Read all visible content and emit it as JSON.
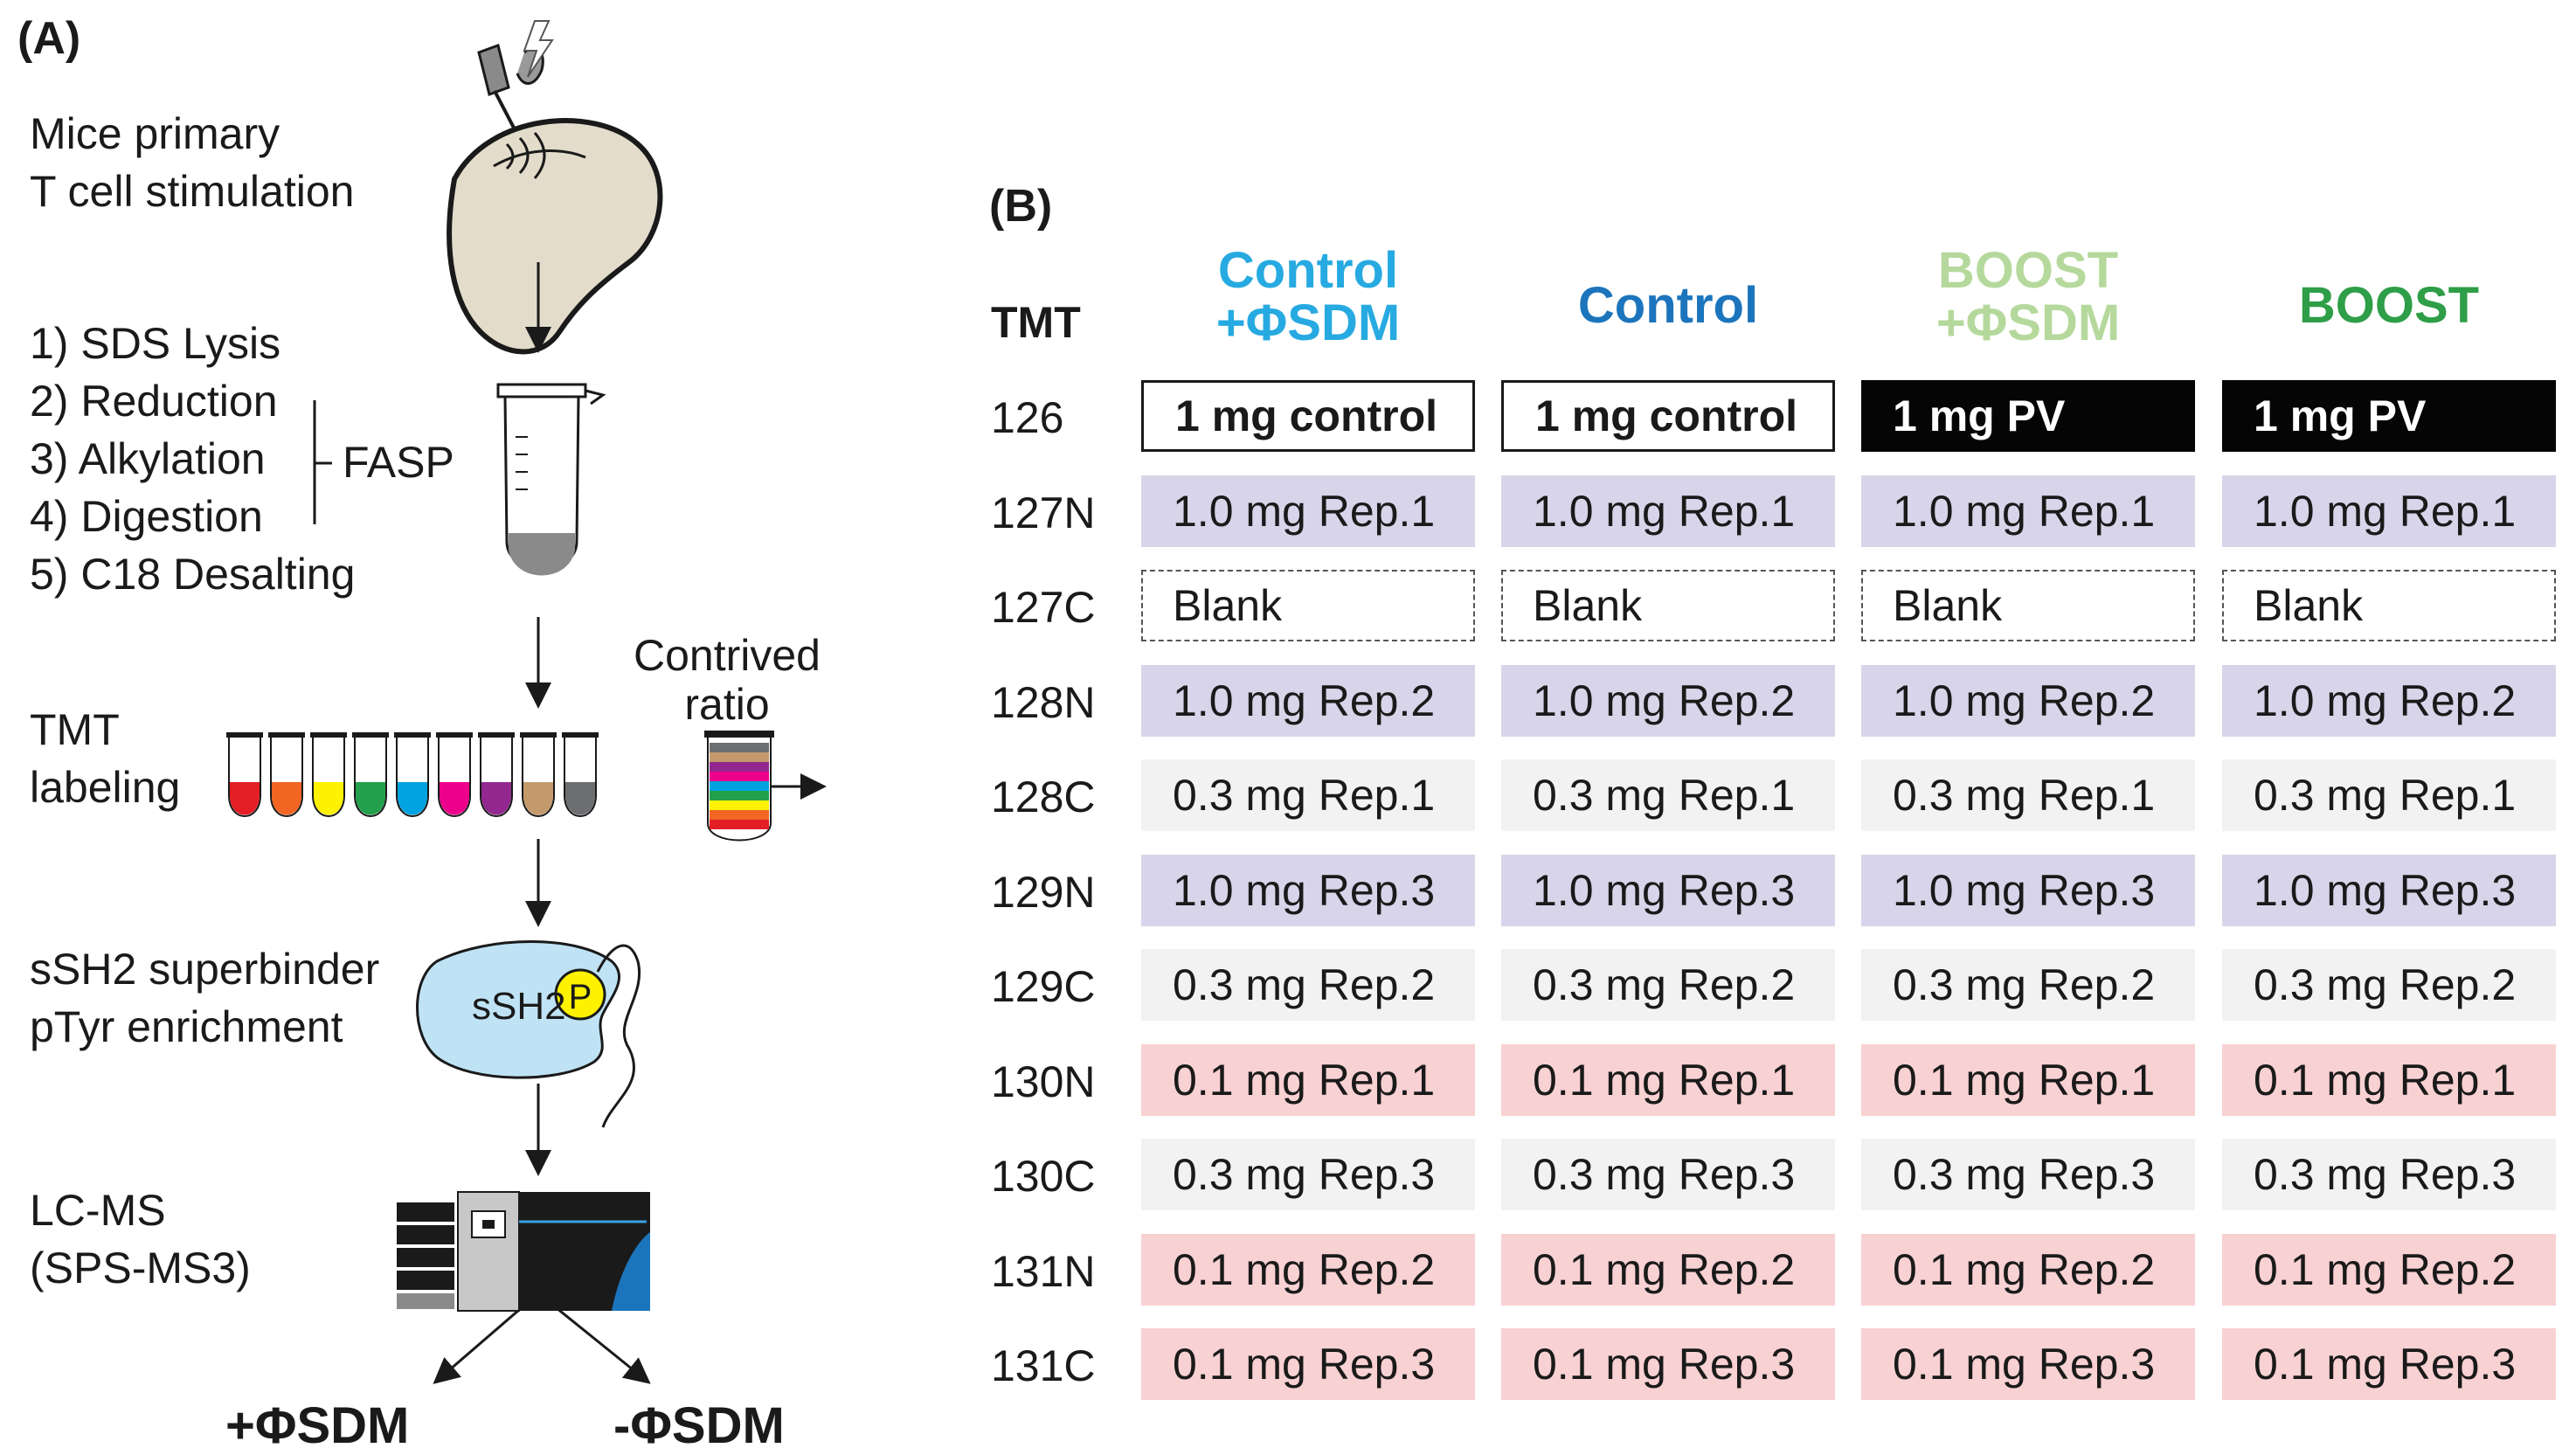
{
  "panel_a": {
    "label": "(A)",
    "stimulation": [
      "Mice primary",
      "T cell stimulation"
    ],
    "steps": [
      "1) SDS Lysis",
      "2) Reduction",
      "3) Alkylation",
      "4) Digestion",
      "5) C18 Desalting"
    ],
    "fasp": "FASP",
    "tmt_labeling": [
      "TMT",
      "labeling"
    ],
    "contrived_ratio": [
      "Contrived",
      "ratio"
    ],
    "enrichment": [
      "sSH2 superbinder",
      "pTyr enrichment"
    ],
    "sh2_text": "sSH2",
    "p_text": "P",
    "lcms": [
      "LC-MS",
      "(SPS-MS3)"
    ],
    "branch_left": "+ΦSDM",
    "branch_right": "-ΦSDM",
    "tube_colors": [
      "#e31e24",
      "#f26522",
      "#fff200",
      "#22a04b",
      "#00a2e0",
      "#ec008c",
      "#92278f",
      "#c49a6c",
      "#6d6e71"
    ],
    "ratio_colors": [
      "#6d6e71",
      "#c49a6c",
      "#92278f",
      "#ec008c",
      "#00a2e0",
      "#22a04b",
      "#fff200",
      "#f26522",
      "#e31e24"
    ]
  },
  "panel_b": {
    "label": "(B)",
    "tmt_header": "TMT",
    "columns": [
      {
        "lines": [
          "Control",
          "+ΦSDM"
        ],
        "color": "#27aae1"
      },
      {
        "lines": [
          "Control"
        ],
        "color": "#1c75bc"
      },
      {
        "lines": [
          "BOOST",
          "+ΦSDM"
        ],
        "color": "#b5d99c"
      },
      {
        "lines": [
          "BOOST"
        ],
        "color": "#2e9e48"
      }
    ],
    "rows": [
      {
        "tmt": "126",
        "style": "special",
        "cells": [
          "1 mg control",
          "1 mg control",
          "1 mg PV",
          "1 mg PV"
        ]
      },
      {
        "tmt": "127N",
        "style": "purple",
        "cells": [
          "1.0 mg Rep.1",
          "1.0 mg Rep.1",
          "1.0 mg Rep.1",
          "1.0 mg Rep.1"
        ]
      },
      {
        "tmt": "127C",
        "style": "blank",
        "cells": [
          "Blank",
          "Blank",
          "Blank",
          "Blank"
        ]
      },
      {
        "tmt": "128N",
        "style": "purple",
        "cells": [
          "1.0 mg Rep.2",
          "1.0 mg Rep.2",
          "1.0 mg Rep.2",
          "1.0 mg Rep.2"
        ]
      },
      {
        "tmt": "128C",
        "style": "gray",
        "cells": [
          "0.3 mg Rep.1",
          "0.3 mg Rep.1",
          "0.3 mg Rep.1",
          "0.3 mg Rep.1"
        ]
      },
      {
        "tmt": "129N",
        "style": "purple",
        "cells": [
          "1.0 mg Rep.3",
          "1.0 mg Rep.3",
          "1.0 mg Rep.3",
          "1.0 mg Rep.3"
        ]
      },
      {
        "tmt": "129C",
        "style": "gray",
        "cells": [
          "0.3 mg Rep.2",
          "0.3 mg Rep.2",
          "0.3 mg Rep.2",
          "0.3 mg Rep.2"
        ]
      },
      {
        "tmt": "130N",
        "style": "pink",
        "cells": [
          "0.1 mg Rep.1",
          "0.1 mg Rep.1",
          "0.1 mg Rep.1",
          "0.1 mg Rep.1"
        ]
      },
      {
        "tmt": "130C",
        "style": "gray",
        "cells": [
          "0.3 mg Rep.3",
          "0.3 mg Rep.3",
          "0.3 mg Rep.3",
          "0.3 mg Rep.3"
        ]
      },
      {
        "tmt": "131N",
        "style": "pink",
        "cells": [
          "0.1 mg Rep.2",
          "0.1 mg Rep.2",
          "0.1 mg Rep.2",
          "0.1 mg Rep.2"
        ]
      },
      {
        "tmt": "131C",
        "style": "pink",
        "cells": [
          "0.1 mg Rep.3",
          "0.1 mg Rep.3",
          "0.1 mg Rep.3",
          "0.1 mg Rep.3"
        ]
      }
    ]
  }
}
